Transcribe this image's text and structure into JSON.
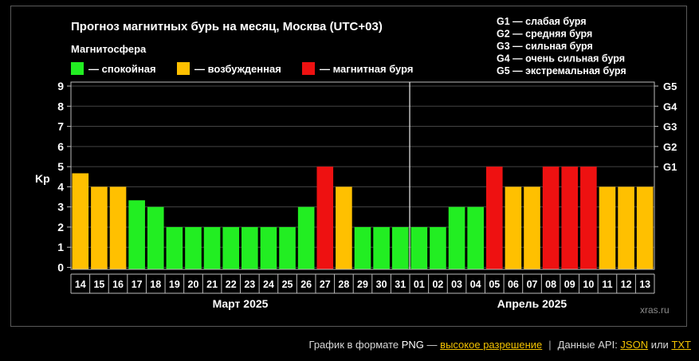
{
  "chart_data": {
    "type": "bar",
    "title": "Прогноз магнитных бурь на месяц, Москва (UTC+03)",
    "legend_title": "Магнитосфера",
    "legend": [
      {
        "label": "— спокойная",
        "color": "#22ee22"
      },
      {
        "label": "— возбужденная",
        "color": "#ffc000"
      },
      {
        "label": "— магнитная буря",
        "color": "#ee1111"
      }
    ],
    "storm_scale": [
      "G1 — слабая буря",
      "G2 — средняя буря",
      "G3 — сильная буря",
      "G4 — очень сильная буря",
      "G5 — экстремальная буря"
    ],
    "ylabel": "Kp",
    "ylim": [
      0,
      9
    ],
    "yticks": [
      0,
      1,
      2,
      3,
      4,
      5,
      6,
      7,
      8,
      9
    ],
    "right_ticks": [
      {
        "label": "G1",
        "value": 5
      },
      {
        "label": "G2",
        "value": 6
      },
      {
        "label": "G3",
        "value": 7
      },
      {
        "label": "G4",
        "value": 8
      },
      {
        "label": "G5",
        "value": 9
      }
    ],
    "grid": true,
    "categories": [
      "14",
      "15",
      "16",
      "17",
      "18",
      "19",
      "20",
      "21",
      "22",
      "23",
      "24",
      "25",
      "26",
      "27",
      "28",
      "29",
      "30",
      "31",
      "01",
      "02",
      "03",
      "04",
      "05",
      "06",
      "07",
      "08",
      "09",
      "10",
      "11",
      "12",
      "13"
    ],
    "values": [
      4.67,
      4,
      4,
      3.33,
      3,
      2,
      2,
      2,
      2,
      2,
      2,
      2,
      3,
      5,
      4,
      2,
      2,
      2,
      2,
      2,
      3,
      3,
      5,
      4,
      4,
      5,
      5,
      5,
      4,
      4,
      4
    ],
    "colors": [
      "#ffc000",
      "#ffc000",
      "#ffc000",
      "#22ee22",
      "#22ee22",
      "#22ee22",
      "#22ee22",
      "#22ee22",
      "#22ee22",
      "#22ee22",
      "#22ee22",
      "#22ee22",
      "#22ee22",
      "#ee1111",
      "#ffc000",
      "#22ee22",
      "#22ee22",
      "#22ee22",
      "#22ee22",
      "#22ee22",
      "#22ee22",
      "#22ee22",
      "#ee1111",
      "#ffc000",
      "#ffc000",
      "#ee1111",
      "#ee1111",
      "#ee1111",
      "#ffc000",
      "#ffc000",
      "#ffc000"
    ],
    "month_groups": [
      {
        "label": "Март 2025",
        "count": 18
      },
      {
        "label": "Апрель 2025",
        "count": 13
      }
    ],
    "watermark": "xras.ru"
  },
  "footer": {
    "text1": "График в формате ",
    "png": "PNG",
    "text2": " — ",
    "hires_link": "высокое разрешение",
    "separator": "|",
    "api_text": "Данные API: ",
    "json_link": "JSON",
    "or_text": " или ",
    "txt_link": "TXT"
  }
}
